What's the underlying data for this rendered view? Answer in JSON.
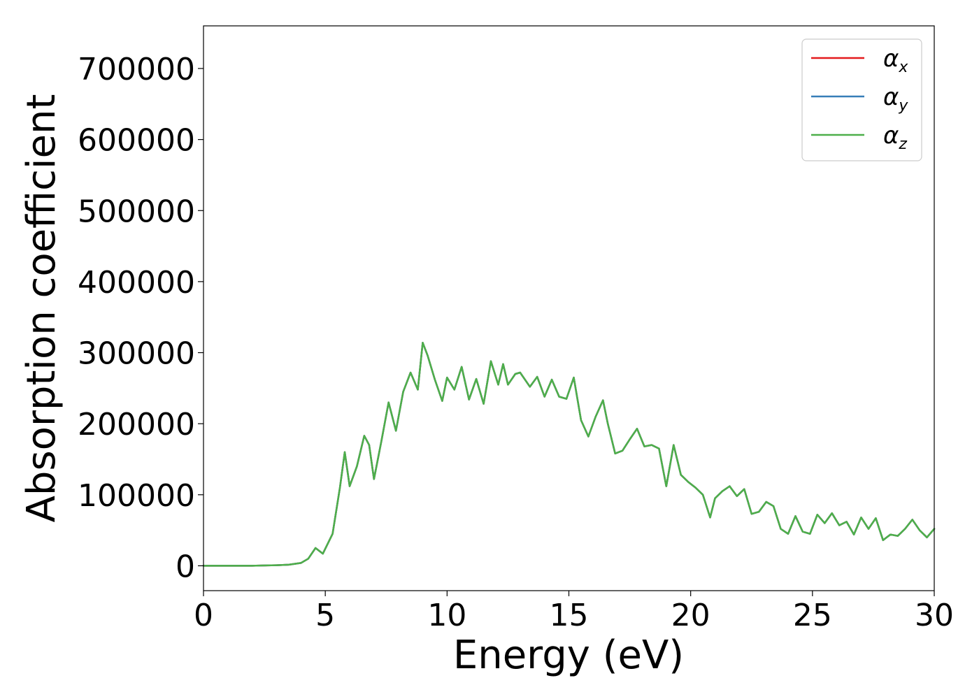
{
  "chart_data": {
    "type": "line",
    "xlabel": "Energy (eV)",
    "ylabel": "Absorption coefficient",
    "xlim": [
      0,
      30
    ],
    "ylim": [
      -35000,
      760000
    ],
    "xticks": [
      0,
      5,
      10,
      15,
      20,
      25,
      30
    ],
    "xtick_labels": [
      "0",
      "5",
      "10",
      "15",
      "20",
      "25",
      "30"
    ],
    "yticks": [
      0,
      100000,
      200000,
      300000,
      400000,
      500000,
      600000,
      700000
    ],
    "ytick_labels": [
      "0",
      "100000",
      "200000",
      "300000",
      "400000",
      "500000",
      "600000",
      "700000"
    ],
    "grid": false,
    "legend_position": "top-right",
    "x": [
      0,
      1,
      2,
      3,
      3.5,
      4,
      4.3,
      4.6,
      4.9,
      5.3,
      5.6,
      5.8,
      6.0,
      6.3,
      6.6,
      6.8,
      7.0,
      7.3,
      7.6,
      7.9,
      8.2,
      8.5,
      8.8,
      9.0,
      9.2,
      9.5,
      9.8,
      10.0,
      10.3,
      10.6,
      10.9,
      11.2,
      11.5,
      11.8,
      12.1,
      12.3,
      12.5,
      12.8,
      13.0,
      13.4,
      13.7,
      14.0,
      14.3,
      14.6,
      14.9,
      15.2,
      15.5,
      15.8,
      16.1,
      16.4,
      16.6,
      16.9,
      17.2,
      17.5,
      17.8,
      18.1,
      18.4,
      18.7,
      19.0,
      19.3,
      19.6,
      19.9,
      20.2,
      20.5,
      20.8,
      21.0,
      21.3,
      21.6,
      21.9,
      22.2,
      22.5,
      22.8,
      23.1,
      23.4,
      23.7,
      24.0,
      24.3,
      24.6,
      24.9,
      25.2,
      25.5,
      25.8,
      26.1,
      26.4,
      26.7,
      27.0,
      27.3,
      27.6,
      27.9,
      28.2,
      28.5,
      28.8,
      29.1,
      29.4,
      29.7,
      30.0
    ],
    "series": [
      {
        "name": "αx",
        "color": "#e41a1c",
        "values": [
          0,
          0,
          0,
          800,
          1500,
          4000,
          10000,
          25000,
          17000,
          45000,
          110000,
          160000,
          112000,
          140000,
          183000,
          170000,
          122000,
          175000,
          230000,
          190000,
          245000,
          272000,
          248000,
          314000,
          296000,
          262000,
          232000,
          265000,
          248000,
          280000,
          234000,
          263000,
          228000,
          288000,
          255000,
          284000,
          255000,
          270000,
          272000,
          252000,
          266000,
          238000,
          262000,
          238000,
          235000,
          265000,
          205000,
          182000,
          210000,
          233000,
          200000,
          158000,
          162000,
          178000,
          193000,
          168000,
          170000,
          165000,
          112000,
          170000,
          128000,
          118000,
          110000,
          100000,
          68000,
          95000,
          105000,
          112000,
          98000,
          108000,
          73000,
          76000,
          90000,
          84000,
          52000,
          45000,
          70000,
          48000,
          45000,
          72000,
          60000,
          74000,
          57000,
          62000,
          44000,
          68000,
          52000,
          67000,
          36000,
          44000,
          42000,
          52000,
          65000,
          50000,
          40000,
          52000
        ]
      },
      {
        "name": "αy",
        "color": "#377eb8",
        "values": [
          0,
          0,
          0,
          800,
          1500,
          4000,
          10000,
          25000,
          17000,
          45000,
          110000,
          160000,
          112000,
          140000,
          183000,
          170000,
          122000,
          175000,
          230000,
          190000,
          245000,
          272000,
          248000,
          314000,
          296000,
          262000,
          232000,
          265000,
          248000,
          280000,
          234000,
          263000,
          228000,
          288000,
          255000,
          284000,
          255000,
          270000,
          272000,
          252000,
          266000,
          238000,
          262000,
          238000,
          235000,
          265000,
          205000,
          182000,
          210000,
          233000,
          200000,
          158000,
          162000,
          178000,
          193000,
          168000,
          170000,
          165000,
          112000,
          170000,
          128000,
          118000,
          110000,
          100000,
          68000,
          95000,
          105000,
          112000,
          98000,
          108000,
          73000,
          76000,
          90000,
          84000,
          52000,
          45000,
          70000,
          48000,
          45000,
          72000,
          60000,
          74000,
          57000,
          62000,
          44000,
          68000,
          52000,
          67000,
          36000,
          44000,
          42000,
          52000,
          65000,
          50000,
          40000,
          52000
        ]
      },
      {
        "name": "αz",
        "color": "#4daf4a",
        "values": [
          0,
          0,
          0,
          800,
          1500,
          4000,
          10000,
          25000,
          17000,
          45000,
          110000,
          160000,
          112000,
          140000,
          183000,
          170000,
          122000,
          175000,
          230000,
          190000,
          245000,
          272000,
          248000,
          314000,
          296000,
          262000,
          232000,
          265000,
          248000,
          280000,
          234000,
          263000,
          228000,
          288000,
          255000,
          284000,
          255000,
          270000,
          272000,
          252000,
          266000,
          238000,
          262000,
          238000,
          235000,
          265000,
          205000,
          182000,
          210000,
          233000,
          200000,
          158000,
          162000,
          178000,
          193000,
          168000,
          170000,
          165000,
          112000,
          170000,
          128000,
          118000,
          110000,
          100000,
          68000,
          95000,
          105000,
          112000,
          98000,
          108000,
          73000,
          76000,
          90000,
          84000,
          52000,
          45000,
          70000,
          48000,
          45000,
          72000,
          60000,
          74000,
          57000,
          62000,
          44000,
          68000,
          52000,
          67000,
          36000,
          44000,
          42000,
          52000,
          65000,
          50000,
          40000,
          52000
        ]
      }
    ],
    "legend": [
      {
        "symbol": "α",
        "subscript": "x"
      },
      {
        "symbol": "α",
        "subscript": "y"
      },
      {
        "symbol": "α",
        "subscript": "z"
      }
    ]
  }
}
